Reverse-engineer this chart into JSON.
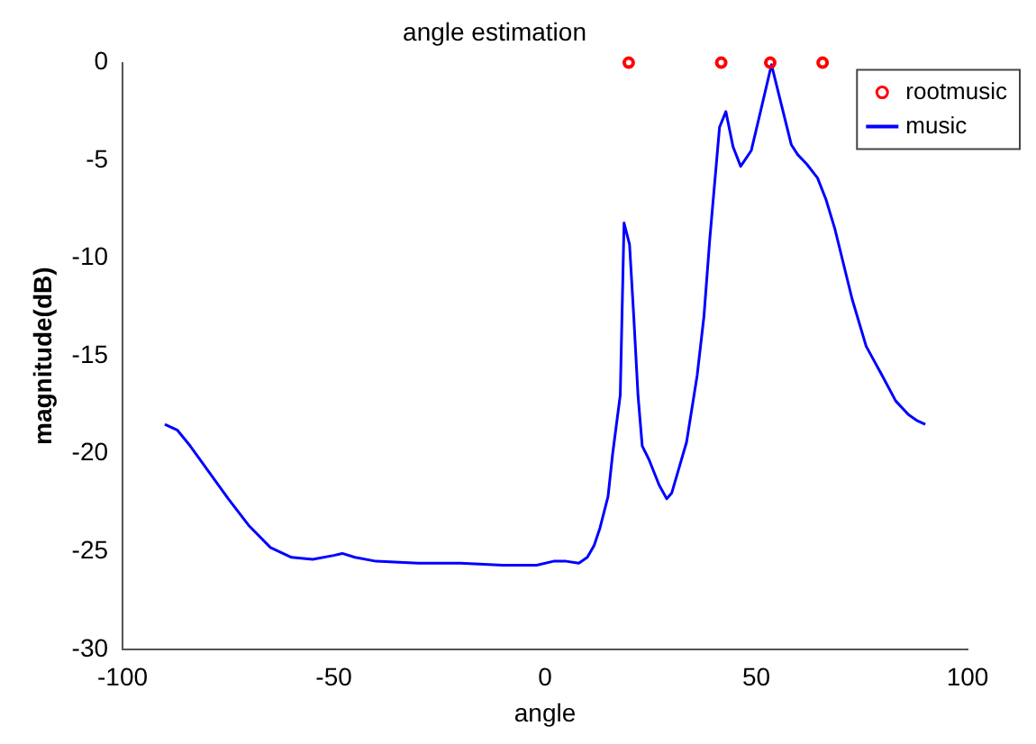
{
  "chart_data": {
    "type": "line",
    "title": "angle estimation",
    "xlabel": "angle",
    "ylabel": "magnitude(dB)",
    "xlim": [
      -100,
      100
    ],
    "xticks": [
      -100,
      -50,
      0,
      50,
      100
    ],
    "ylim": [
      -30,
      0
    ],
    "yticks": [
      -30,
      -25,
      -20,
      -15,
      -10,
      -5,
      0
    ],
    "grid": false,
    "legend": "top right",
    "series": [
      {
        "name": "rootmusic",
        "type": "scatter",
        "marker": "circle",
        "color": "#ff0000",
        "x": [
          19.8,
          41.7,
          53.3,
          65.7
        ],
        "values": [
          0,
          0,
          0,
          0
        ]
      },
      {
        "name": "music",
        "type": "line",
        "marker": "none",
        "color": "#0000ff",
        "x": [
          -90,
          -87,
          -84,
          -80,
          -75,
          -70,
          -65,
          -60,
          -55,
          -50,
          -48,
          -45,
          -40,
          -30,
          -20,
          -10,
          -2,
          2,
          5,
          8,
          10,
          11.6,
          13,
          14.9,
          16,
          17.8,
          18.7,
          20,
          21,
          22,
          23,
          24.6,
          27,
          28.8,
          30,
          33.5,
          36,
          37.6,
          39,
          41.3,
          42.8,
          44.5,
          46.3,
          48.8,
          51,
          53.6,
          56,
          58.3,
          59.8,
          62,
          64.5,
          66.5,
          68.6,
          72.7,
          76,
          79.8,
          83,
          86,
          88,
          90
        ],
        "values": [
          -18.5,
          -18.8,
          -19.6,
          -20.8,
          -22.3,
          -23.7,
          -24.8,
          -25.3,
          -25.4,
          -25.2,
          -25.1,
          -25.3,
          -25.5,
          -25.6,
          -25.6,
          -25.7,
          -25.7,
          -25.5,
          -25.5,
          -25.6,
          -25.3,
          -24.7,
          -23.8,
          -22.2,
          -20,
          -17,
          -8.2,
          -9.3,
          -13,
          -17,
          -19.6,
          -20.3,
          -21.6,
          -22.3,
          -22,
          -19.4,
          -16,
          -13,
          -9,
          -3.3,
          -2.5,
          -4.3,
          -5.3,
          -4.5,
          -2.5,
          -0.1,
          -2.2,
          -4.2,
          -4.7,
          -5.2,
          -5.9,
          -7,
          -8.5,
          -12.1,
          -14.5,
          -16,
          -17.3,
          -18,
          -18.3,
          -18.5
        ]
      }
    ]
  }
}
